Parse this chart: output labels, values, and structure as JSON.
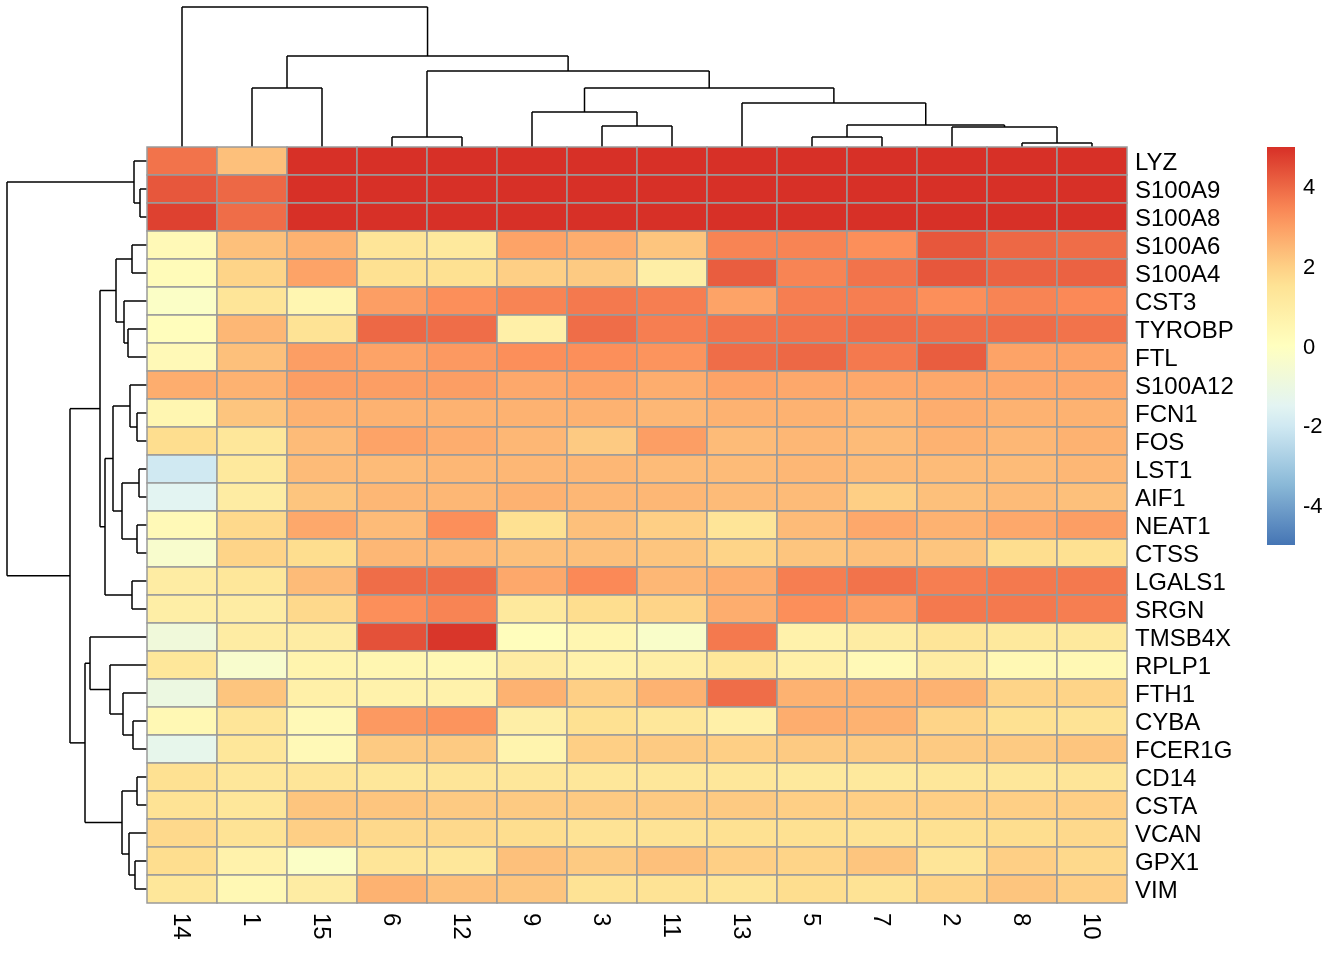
{
  "chart_data": {
    "type": "heatmap",
    "categories": [
      "14",
      "1",
      "15",
      "6",
      "12",
      "9",
      "3",
      "11",
      "13",
      "5",
      "7",
      "2",
      "8",
      "10"
    ],
    "y_categories": [
      "LYZ",
      "S100A9",
      "S100A8",
      "S100A6",
      "S100A4",
      "CST3",
      "TYROBP",
      "FTL",
      "S100A12",
      "FCN1",
      "FOS",
      "LST1",
      "AIF1",
      "NEAT1",
      "CTSS",
      "LGALS1",
      "SRGN",
      "TMSB4X",
      "RPLP1",
      "FTH1",
      "CYBA",
      "FCER1G",
      "CD14",
      "CSTA",
      "VCAN",
      "GPX1",
      "VIM"
    ],
    "cells": [
      [
        3.8,
        2.3,
        5,
        5,
        5,
        5,
        5,
        5,
        5,
        5,
        5,
        5,
        5,
        5
      ],
      [
        4.3,
        4.0,
        5,
        5,
        5,
        5,
        5,
        5,
        5,
        5,
        5,
        5,
        5,
        5
      ],
      [
        4.7,
        3.9,
        5,
        5,
        5,
        5,
        5,
        5,
        5,
        5,
        5,
        5,
        5,
        5
      ],
      [
        0.3,
        2.3,
        2.6,
        1.4,
        1.2,
        2.9,
        2.7,
        2.2,
        3.5,
        3.5,
        3.3,
        4.3,
        4.0,
        3.9
      ],
      [
        0.2,
        1.9,
        2.9,
        1.6,
        1.6,
        2.0,
        2.1,
        0.9,
        4.2,
        3.5,
        3.8,
        4.3,
        4.1,
        4.1
      ],
      [
        -0.2,
        1.4,
        0.5,
        3.0,
        3.3,
        3.5,
        3.7,
        3.6,
        2.9,
        3.6,
        3.6,
        3.3,
        3.5,
        3.4
      ],
      [
        0.1,
        2.5,
        1.5,
        4.0,
        3.9,
        0.8,
        3.9,
        3.6,
        3.8,
        3.8,
        3.9,
        3.9,
        3.9,
        3.8
      ],
      [
        0.3,
        2.3,
        3.0,
        2.9,
        3.1,
        3.3,
        3.3,
        3.2,
        3.9,
        4.0,
        3.7,
        4.2,
        2.9,
        2.9
      ],
      [
        2.7,
        2.6,
        3.0,
        3.0,
        3.0,
        2.8,
        2.9,
        2.7,
        2.9,
        2.8,
        2.8,
        2.8,
        2.8,
        2.8
      ],
      [
        0.5,
        2.2,
        2.6,
        2.6,
        2.6,
        2.6,
        2.6,
        2.5,
        2.6,
        2.6,
        2.5,
        2.7,
        2.6,
        2.6
      ],
      [
        1.7,
        1.3,
        2.4,
        2.9,
        2.7,
        2.5,
        2.1,
        3.0,
        2.4,
        2.5,
        2.4,
        2.6,
        2.5,
        2.6
      ],
      [
        -2.0,
        1.2,
        2.4,
        2.4,
        2.5,
        2.5,
        2.5,
        2.4,
        2.4,
        2.5,
        2.4,
        2.4,
        2.4,
        2.5
      ],
      [
        -1.5,
        1.0,
        2.2,
        2.5,
        2.5,
        2.6,
        2.5,
        2.5,
        2.4,
        2.4,
        2.0,
        2.3,
        2.4,
        2.3
      ],
      [
        0.3,
        1.8,
        2.8,
        2.4,
        3.3,
        1.6,
        2.3,
        2.0,
        1.4,
        2.4,
        2.8,
        2.6,
        2.8,
        3.0
      ],
      [
        -0.4,
        1.9,
        1.7,
        2.5,
        2.5,
        2.3,
        2.3,
        2.2,
        1.9,
        2.2,
        2.3,
        2.2,
        1.7,
        1.6
      ],
      [
        1.0,
        1.3,
        2.4,
        3.9,
        3.9,
        2.8,
        3.4,
        2.5,
        2.7,
        3.6,
        3.8,
        3.6,
        3.7,
        3.7
      ],
      [
        0.9,
        1.0,
        1.8,
        3.3,
        3.5,
        1.2,
        1.7,
        1.9,
        2.7,
        3.3,
        3.0,
        3.7,
        3.7,
        3.6
      ],
      [
        -0.8,
        1.0,
        1.0,
        4.4,
        4.9,
        0.1,
        0.5,
        -0.3,
        3.7,
        0.7,
        1.0,
        1.4,
        1.2,
        1.2
      ],
      [
        1.3,
        -0.4,
        0.6,
        0.5,
        0.4,
        1.0,
        0.7,
        0.9,
        1.3,
        0.8,
        0.3,
        1.0,
        0.4,
        0.4
      ],
      [
        -1.0,
        2.2,
        0.8,
        0.7,
        0.7,
        2.6,
        2.0,
        2.6,
        3.9,
        2.6,
        2.6,
        2.6,
        1.9,
        1.9
      ],
      [
        0.4,
        1.4,
        0.3,
        3.1,
        3.2,
        0.9,
        1.6,
        1.3,
        0.8,
        2.7,
        2.6,
        1.9,
        1.6,
        1.5
      ],
      [
        -1.3,
        1.3,
        0.3,
        2.1,
        2.1,
        0.6,
        2.0,
        2.1,
        2.0,
        2.1,
        2.1,
        2.1,
        2.1,
        2.2
      ],
      [
        1.6,
        1.3,
        1.4,
        1.3,
        1.4,
        1.3,
        1.3,
        1.3,
        1.3,
        1.2,
        1.2,
        1.3,
        1.3,
        1.4
      ],
      [
        1.5,
        1.3,
        2.2,
        2.2,
        2.1,
        2.1,
        2.1,
        2.1,
        2.1,
        2.0,
        2.0,
        2.0,
        2.0,
        2.0
      ],
      [
        1.8,
        1.5,
        2.0,
        1.8,
        1.8,
        1.7,
        1.5,
        1.5,
        1.6,
        1.6,
        1.5,
        1.6,
        1.7,
        1.8
      ],
      [
        1.7,
        0.7,
        -0.2,
        1.4,
        1.3,
        2.3,
        2.1,
        2.3,
        2.0,
        1.9,
        2.2,
        1.4,
        2.0,
        1.8
      ],
      [
        1.3,
        0.4,
        1.0,
        2.6,
        2.3,
        2.2,
        1.5,
        1.5,
        1.4,
        1.7,
        1.5,
        1.9,
        2.2,
        2.0
      ]
    ],
    "clim": [
      -5,
      5
    ],
    "cticks": [
      -4,
      -2,
      0,
      2,
      4
    ]
  }
}
